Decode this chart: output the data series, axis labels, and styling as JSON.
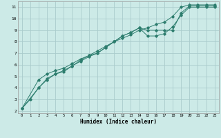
{
  "title": "",
  "xlabel": "Humidex (Indice chaleur)",
  "ylabel": "",
  "bg_color": "#cceae7",
  "grid_color": "#aacccc",
  "line_color": "#2d7d6e",
  "xlim": [
    -0.5,
    23.5
  ],
  "ylim": [
    1.8,
    11.5
  ],
  "xticks": [
    0,
    1,
    2,
    3,
    4,
    5,
    6,
    7,
    8,
    9,
    10,
    11,
    12,
    13,
    14,
    15,
    16,
    17,
    18,
    19,
    20,
    21,
    22,
    23
  ],
  "yticks": [
    2,
    3,
    4,
    5,
    6,
    7,
    8,
    9,
    10,
    11
  ],
  "line1_x": [
    0,
    1,
    2,
    3,
    4,
    5,
    6,
    7,
    8,
    9,
    10,
    11,
    12,
    13,
    14,
    15,
    16,
    17,
    18,
    19,
    20,
    21,
    22,
    23
  ],
  "line1_y": [
    2.2,
    3.0,
    4.0,
    4.8,
    5.2,
    5.5,
    5.9,
    6.4,
    6.8,
    7.2,
    7.6,
    8.0,
    8.3,
    8.6,
    9.0,
    9.2,
    9.5,
    9.7,
    10.2,
    11.0,
    11.2,
    11.2,
    11.2,
    11.2
  ],
  "line2_x": [
    0,
    2,
    3,
    4,
    5,
    6,
    7,
    8,
    9,
    10,
    11,
    12,
    13,
    14,
    15,
    16,
    17,
    18,
    19,
    20,
    21,
    22,
    23
  ],
  "line2_y": [
    2.2,
    4.7,
    5.2,
    5.5,
    5.7,
    6.1,
    6.5,
    6.8,
    7.0,
    7.5,
    8.0,
    8.5,
    8.8,
    9.2,
    8.5,
    8.5,
    8.7,
    9.3,
    10.3,
    11.0,
    11.0,
    11.0,
    11.0
  ],
  "line3_x": [
    0,
    2,
    3,
    4,
    5,
    6,
    7,
    8,
    9,
    10,
    11,
    12,
    13,
    14,
    15,
    16,
    17,
    18,
    19,
    20,
    21,
    22,
    23
  ],
  "line3_y": [
    2.2,
    4.0,
    4.7,
    5.2,
    5.4,
    5.9,
    6.3,
    6.7,
    7.0,
    7.5,
    8.0,
    8.5,
    8.8,
    9.2,
    9.0,
    9.0,
    9.0,
    9.0,
    10.5,
    11.1,
    11.1,
    11.1,
    11.1
  ],
  "marker": "D",
  "marker_size": 1.8,
  "linewidth": 0.7
}
